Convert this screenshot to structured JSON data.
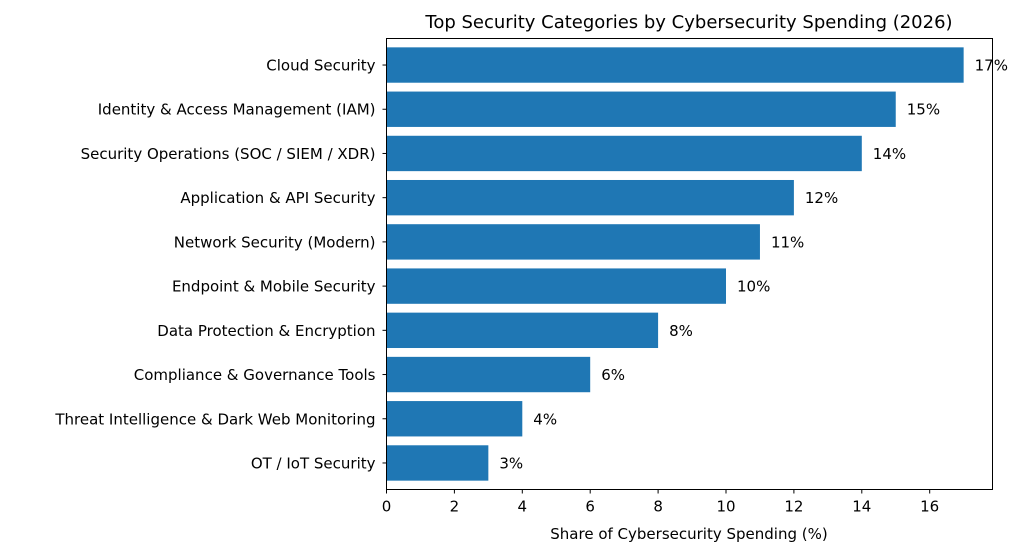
{
  "chart_data": {
    "type": "bar",
    "orientation": "horizontal",
    "title": "Top Security Categories by Cybersecurity Spending (2026)",
    "xlabel": "Share of Cybersecurity Spending (%)",
    "ylabel": "",
    "categories": [
      "Cloud Security",
      "Identity & Access Management (IAM)",
      "Security Operations (SOC / SIEM / XDR)",
      "Application & API Security",
      "Network Security (Modern)",
      "Endpoint & Mobile Security",
      "Data Protection & Encryption",
      "Compliance & Governance Tools",
      "Threat Intelligence & Dark Web Monitoring",
      "OT / IoT Security"
    ],
    "values": [
      17,
      15,
      14,
      12,
      11,
      10,
      8,
      6,
      4,
      3
    ],
    "data_labels": [
      "17%",
      "15%",
      "14%",
      "12%",
      "11%",
      "10%",
      "8%",
      "6%",
      "4%",
      "3%"
    ],
    "xlim": [
      0,
      17.85
    ],
    "xticks": [
      "0",
      "2",
      "4",
      "6",
      "8",
      "10",
      "12",
      "14",
      "16"
    ],
    "grid": false,
    "bar_color": "#1f77b4"
  }
}
